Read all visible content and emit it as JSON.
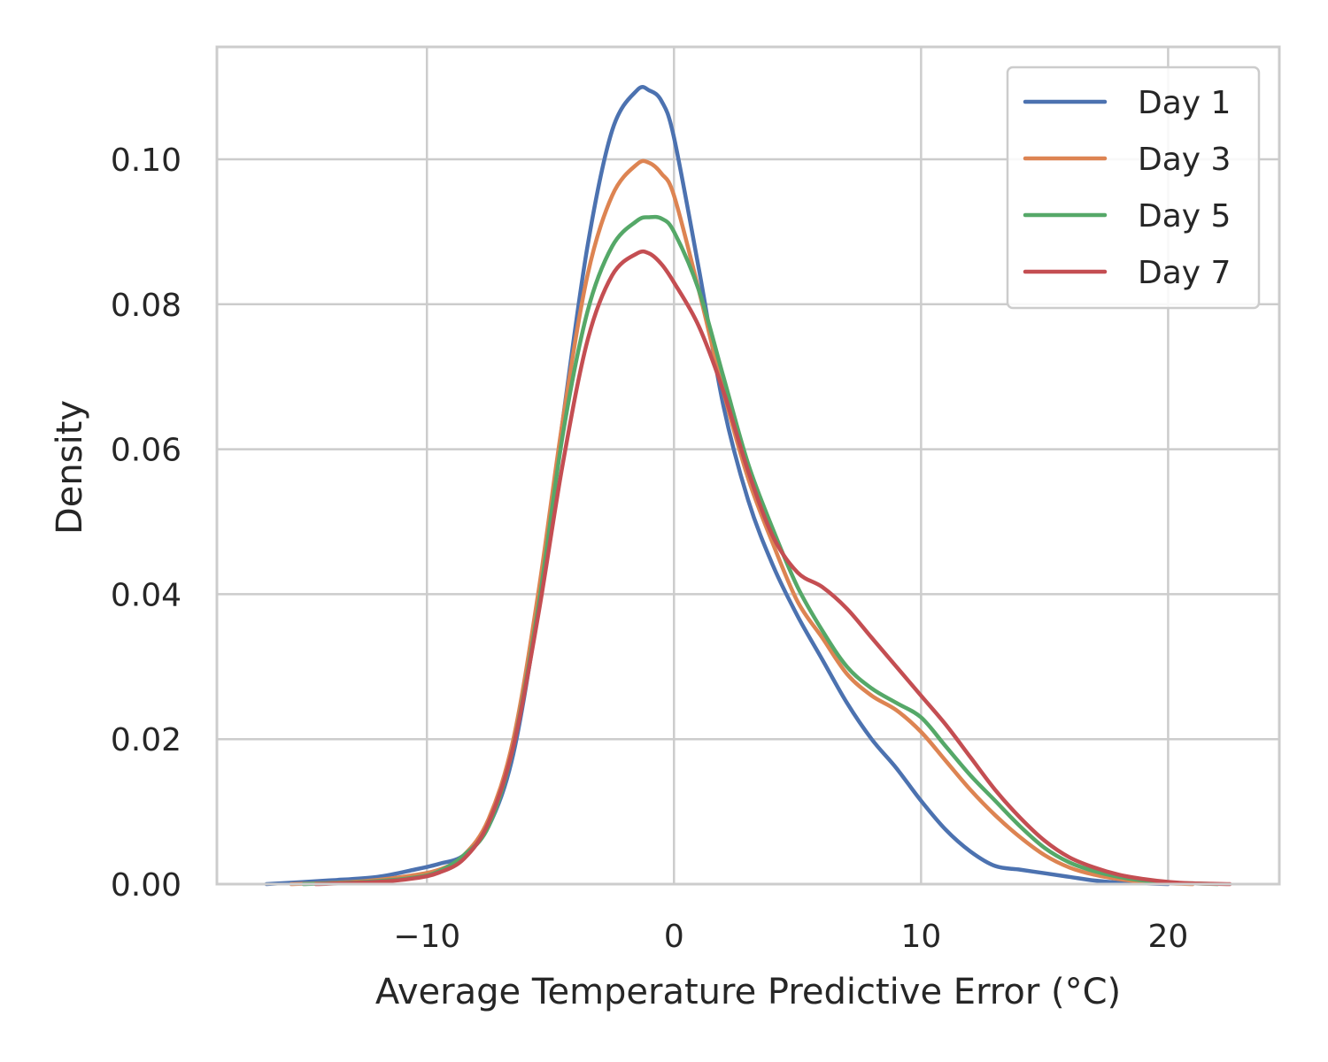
{
  "chart_data": {
    "type": "line",
    "xlabel": "Average Temperature Predictive Error (°C)",
    "ylabel": "Density",
    "xlim": [
      -18.5,
      24.5
    ],
    "ylim": [
      0,
      0.1155
    ],
    "x_ticks": [
      -10,
      0,
      10,
      20
    ],
    "x_tick_labels": [
      "−10",
      "0",
      "10",
      "20"
    ],
    "y_ticks": [
      0,
      0.02,
      0.04,
      0.06,
      0.08,
      0.1
    ],
    "y_tick_labels": [
      "0.00",
      "0.02",
      "0.04",
      "0.06",
      "0.08",
      "0.10"
    ],
    "grid": true,
    "legend_position": "top-right",
    "series": [
      {
        "name": "Day 1",
        "color": "#4c72b0",
        "x": [
          -16.5,
          -14,
          -12,
          -10.5,
          -9.5,
          -8.5,
          -7.5,
          -6.5,
          -5.5,
          -4.5,
          -3.5,
          -2.5,
          -1.5,
          -1,
          -0.5,
          0,
          1,
          2,
          3,
          4,
          5,
          6,
          7,
          8,
          9,
          10,
          11,
          12,
          13,
          14,
          15,
          16,
          17,
          18,
          19,
          20
        ],
        "y": [
          0.0,
          0.0005,
          0.001,
          0.002,
          0.0028,
          0.004,
          0.008,
          0.018,
          0.038,
          0.064,
          0.088,
          0.104,
          0.1095,
          0.1095,
          0.108,
          0.103,
          0.085,
          0.066,
          0.053,
          0.044,
          0.037,
          0.031,
          0.025,
          0.02,
          0.016,
          0.0115,
          0.0075,
          0.0045,
          0.0025,
          0.002,
          0.0015,
          0.001,
          0.0005,
          0.0002,
          0.0001,
          0.0
        ]
      },
      {
        "name": "Day 3",
        "color": "#dd8452",
        "x": [
          -15.5,
          -13,
          -11,
          -9.5,
          -8.5,
          -7.5,
          -6.5,
          -5.5,
          -4.5,
          -3.5,
          -2.5,
          -1.5,
          -1,
          -0.5,
          0,
          1,
          2,
          3,
          4,
          5,
          6,
          7,
          8,
          9,
          10,
          11,
          12,
          13,
          14,
          15,
          16,
          17,
          18,
          19,
          20,
          21
        ],
        "y": [
          0.0,
          0.0003,
          0.001,
          0.002,
          0.004,
          0.009,
          0.02,
          0.04,
          0.064,
          0.084,
          0.095,
          0.0993,
          0.0995,
          0.098,
          0.095,
          0.082,
          0.068,
          0.056,
          0.047,
          0.039,
          0.034,
          0.029,
          0.026,
          0.024,
          0.021,
          0.017,
          0.013,
          0.0095,
          0.0065,
          0.004,
          0.0023,
          0.0013,
          0.0007,
          0.0003,
          0.0001,
          0.0
        ]
      },
      {
        "name": "Day 5",
        "color": "#55a868",
        "x": [
          -15,
          -12.5,
          -10.5,
          -9.5,
          -8.5,
          -7.5,
          -6.5,
          -5.5,
          -4.5,
          -3.5,
          -2.5,
          -1.5,
          -1,
          -0.5,
          0,
          1,
          2,
          3,
          4,
          5,
          6,
          7,
          8,
          9,
          10,
          11,
          12,
          13,
          14,
          15,
          16,
          17,
          18,
          19,
          20,
          21,
          22
        ],
        "y": [
          0.0,
          0.0003,
          0.0009,
          0.0018,
          0.004,
          0.008,
          0.019,
          0.038,
          0.062,
          0.079,
          0.088,
          0.0915,
          0.092,
          0.0918,
          0.09,
          0.082,
          0.07,
          0.058,
          0.049,
          0.041,
          0.035,
          0.03,
          0.027,
          0.025,
          0.023,
          0.019,
          0.015,
          0.0115,
          0.008,
          0.005,
          0.003,
          0.0018,
          0.001,
          0.0005,
          0.0002,
          0.0001,
          0.0
        ]
      },
      {
        "name": "Day 7",
        "color": "#c44e52",
        "x": [
          -14.5,
          -12,
          -10.5,
          -9.5,
          -8.5,
          -7.5,
          -6.5,
          -5.5,
          -4.5,
          -3.5,
          -2.5,
          -1.5,
          -1,
          -0.5,
          0,
          1,
          2,
          3,
          4,
          5,
          6,
          7,
          8,
          9,
          10,
          11,
          12,
          13,
          14,
          15,
          16,
          17,
          18,
          19,
          20,
          21,
          22.5
        ],
        "y": [
          0.0,
          0.0003,
          0.0008,
          0.0016,
          0.0035,
          0.0085,
          0.019,
          0.037,
          0.058,
          0.075,
          0.084,
          0.087,
          0.087,
          0.0855,
          0.083,
          0.077,
          0.068,
          0.057,
          0.048,
          0.043,
          0.041,
          0.038,
          0.034,
          0.03,
          0.026,
          0.022,
          0.0175,
          0.013,
          0.0092,
          0.006,
          0.0037,
          0.0023,
          0.0013,
          0.0007,
          0.0003,
          0.0001,
          0.0
        ]
      }
    ]
  }
}
